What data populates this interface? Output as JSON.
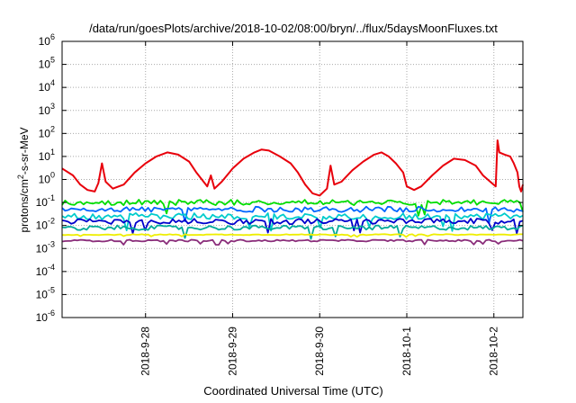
{
  "chart_data": {
    "type": "line",
    "title": "/data/run/goesPlots/archive/2018-10-02/08:00/bryn/../flux/5daysMoonFluxes.txt",
    "xlabel": "Coordinated Universal Time (UTC)",
    "ylabel_parts": {
      "pre": "protons/cm",
      "sup": "2",
      "post": "-s-sr-MeV"
    },
    "x_axis": {
      "kind": "date",
      "start": "2018-09-27T01:00",
      "end": "2018-10-02T08:00",
      "ticks": [
        {
          "at": "2018-09-28T00:00",
          "label": "2018-9-28"
        },
        {
          "at": "2018-09-29T00:00",
          "label": "2018-9-29"
        },
        {
          "at": "2018-09-30T00:00",
          "label": "2018-9-30"
        },
        {
          "at": "2018-10-01T00:00",
          "label": "2018-10-1"
        },
        {
          "at": "2018-10-02T00:00",
          "label": "2018-10-2"
        }
      ]
    },
    "y_axis": {
      "scale": "log",
      "ylim": [
        1e-06,
        1000000.0
      ],
      "ticks": [
        {
          "value": 1000000.0,
          "base": "10",
          "exp": "6"
        },
        {
          "value": 100000.0,
          "base": "10",
          "exp": "5"
        },
        {
          "value": 10000.0,
          "base": "10",
          "exp": "4"
        },
        {
          "value": 1000.0,
          "base": "10",
          "exp": "3"
        },
        {
          "value": 100.0,
          "base": "10",
          "exp": "2"
        },
        {
          "value": 10.0,
          "base": "10",
          "exp": "1"
        },
        {
          "value": 1.0,
          "base": "10",
          "exp": "0"
        },
        {
          "value": 0.1,
          "base": "10",
          "exp": "-1"
        },
        {
          "value": 0.01,
          "base": "10",
          "exp": "-2"
        },
        {
          "value": 0.001,
          "base": "10",
          "exp": "-3"
        },
        {
          "value": 0.0001,
          "base": "10",
          "exp": "-4"
        },
        {
          "value": 1e-05,
          "base": "10",
          "exp": "-5"
        },
        {
          "value": 1e-06,
          "base": "10",
          "exp": "-6"
        }
      ]
    },
    "grid": true,
    "legend": "none",
    "series": [
      {
        "color": "#e8000b",
        "points": [
          [
            "2018-09-27T01:00",
            3.0
          ],
          [
            "2018-09-27T04:00",
            1.5
          ],
          [
            "2018-09-27T06:00",
            0.6
          ],
          [
            "2018-09-27T08:00",
            0.35
          ],
          [
            "2018-09-27T10:00",
            0.3
          ],
          [
            "2018-09-27T11:00",
            0.7
          ],
          [
            "2018-09-27T12:00",
            5.0
          ],
          [
            "2018-09-27T13:00",
            0.8
          ],
          [
            "2018-09-27T15:00",
            0.4
          ],
          [
            "2018-09-27T18:00",
            0.6
          ],
          [
            "2018-09-27T21:00",
            2.0
          ],
          [
            "2018-09-28T00:00",
            5.0
          ],
          [
            "2018-09-28T03:00",
            10
          ],
          [
            "2018-09-28T06:00",
            15
          ],
          [
            "2018-09-28T09:00",
            12
          ],
          [
            "2018-09-28T12:00",
            6.0
          ],
          [
            "2018-09-28T14:00",
            2.0
          ],
          [
            "2018-09-28T16:00",
            0.8
          ],
          [
            "2018-09-28T17:00",
            0.5
          ],
          [
            "2018-09-28T18:00",
            1.5
          ],
          [
            "2018-09-28T19:00",
            0.4
          ],
          [
            "2018-09-28T21:00",
            0.8
          ],
          [
            "2018-09-29T00:00",
            3.0
          ],
          [
            "2018-09-29T03:00",
            8.0
          ],
          [
            "2018-09-29T06:00",
            15
          ],
          [
            "2018-09-29T08:00",
            20
          ],
          [
            "2018-09-29T10:00",
            18
          ],
          [
            "2018-09-29T13:00",
            10
          ],
          [
            "2018-09-29T16:00",
            5.0
          ],
          [
            "2018-09-29T18:00",
            2.0
          ],
          [
            "2018-09-29T20:00",
            0.6
          ],
          [
            "2018-09-29T22:00",
            0.25
          ],
          [
            "2018-09-30T00:00",
            0.2
          ],
          [
            "2018-09-30T02:00",
            0.4
          ],
          [
            "2018-09-30T03:00",
            4.0
          ],
          [
            "2018-09-30T04:00",
            0.6
          ],
          [
            "2018-09-30T06:00",
            0.8
          ],
          [
            "2018-09-30T09:00",
            2.5
          ],
          [
            "2018-09-30T12:00",
            6.0
          ],
          [
            "2018-09-30T15:00",
            12
          ],
          [
            "2018-09-30T17:00",
            15
          ],
          [
            "2018-09-30T19:00",
            10
          ],
          [
            "2018-09-30T21:00",
            5.0
          ],
          [
            "2018-09-30T23:00",
            2.0
          ],
          [
            "2018-10-01T00:00",
            0.5
          ],
          [
            "2018-10-01T02:00",
            0.35
          ],
          [
            "2018-10-01T04:00",
            0.5
          ],
          [
            "2018-10-01T07:00",
            1.5
          ],
          [
            "2018-10-01T10:00",
            4.0
          ],
          [
            "2018-10-01T13:00",
            8.0
          ],
          [
            "2018-10-01T16:00",
            7.0
          ],
          [
            "2018-10-01T19:00",
            4.0
          ],
          [
            "2018-10-01T21:00",
            1.5
          ],
          [
            "2018-10-01T23:00",
            0.8
          ],
          [
            "2018-10-02T00:30",
            0.5
          ],
          [
            "2018-10-02T01:00",
            50
          ],
          [
            "2018-10-02T01:30",
            15
          ],
          [
            "2018-10-02T03:00",
            12
          ],
          [
            "2018-10-02T04:30",
            10
          ],
          [
            "2018-10-02T05:30",
            5.0
          ],
          [
            "2018-10-02T06:30",
            2.0
          ],
          [
            "2018-10-02T07:00",
            0.5
          ],
          [
            "2018-10-02T07:30",
            0.3
          ],
          [
            "2018-10-02T08:00",
            0.6
          ]
        ]
      },
      {
        "color": "#00dd00",
        "level": 0.1,
        "spread": 0.12
      },
      {
        "color": "#0066ff",
        "level": 0.05,
        "spread": 0.12
      },
      {
        "color": "#00cccc",
        "level": 0.025,
        "spread": 0.14
      },
      {
        "color": "#0000cc",
        "level": 0.015,
        "spread": 0.12
      },
      {
        "color": "#00aa99",
        "level": 0.008,
        "spread": 0.1
      },
      {
        "color": "#eeee00",
        "level": 0.004,
        "spread": 0.02
      },
      {
        "color": "#8a2d7a",
        "level": 0.0022,
        "spread": 0.04
      }
    ]
  }
}
